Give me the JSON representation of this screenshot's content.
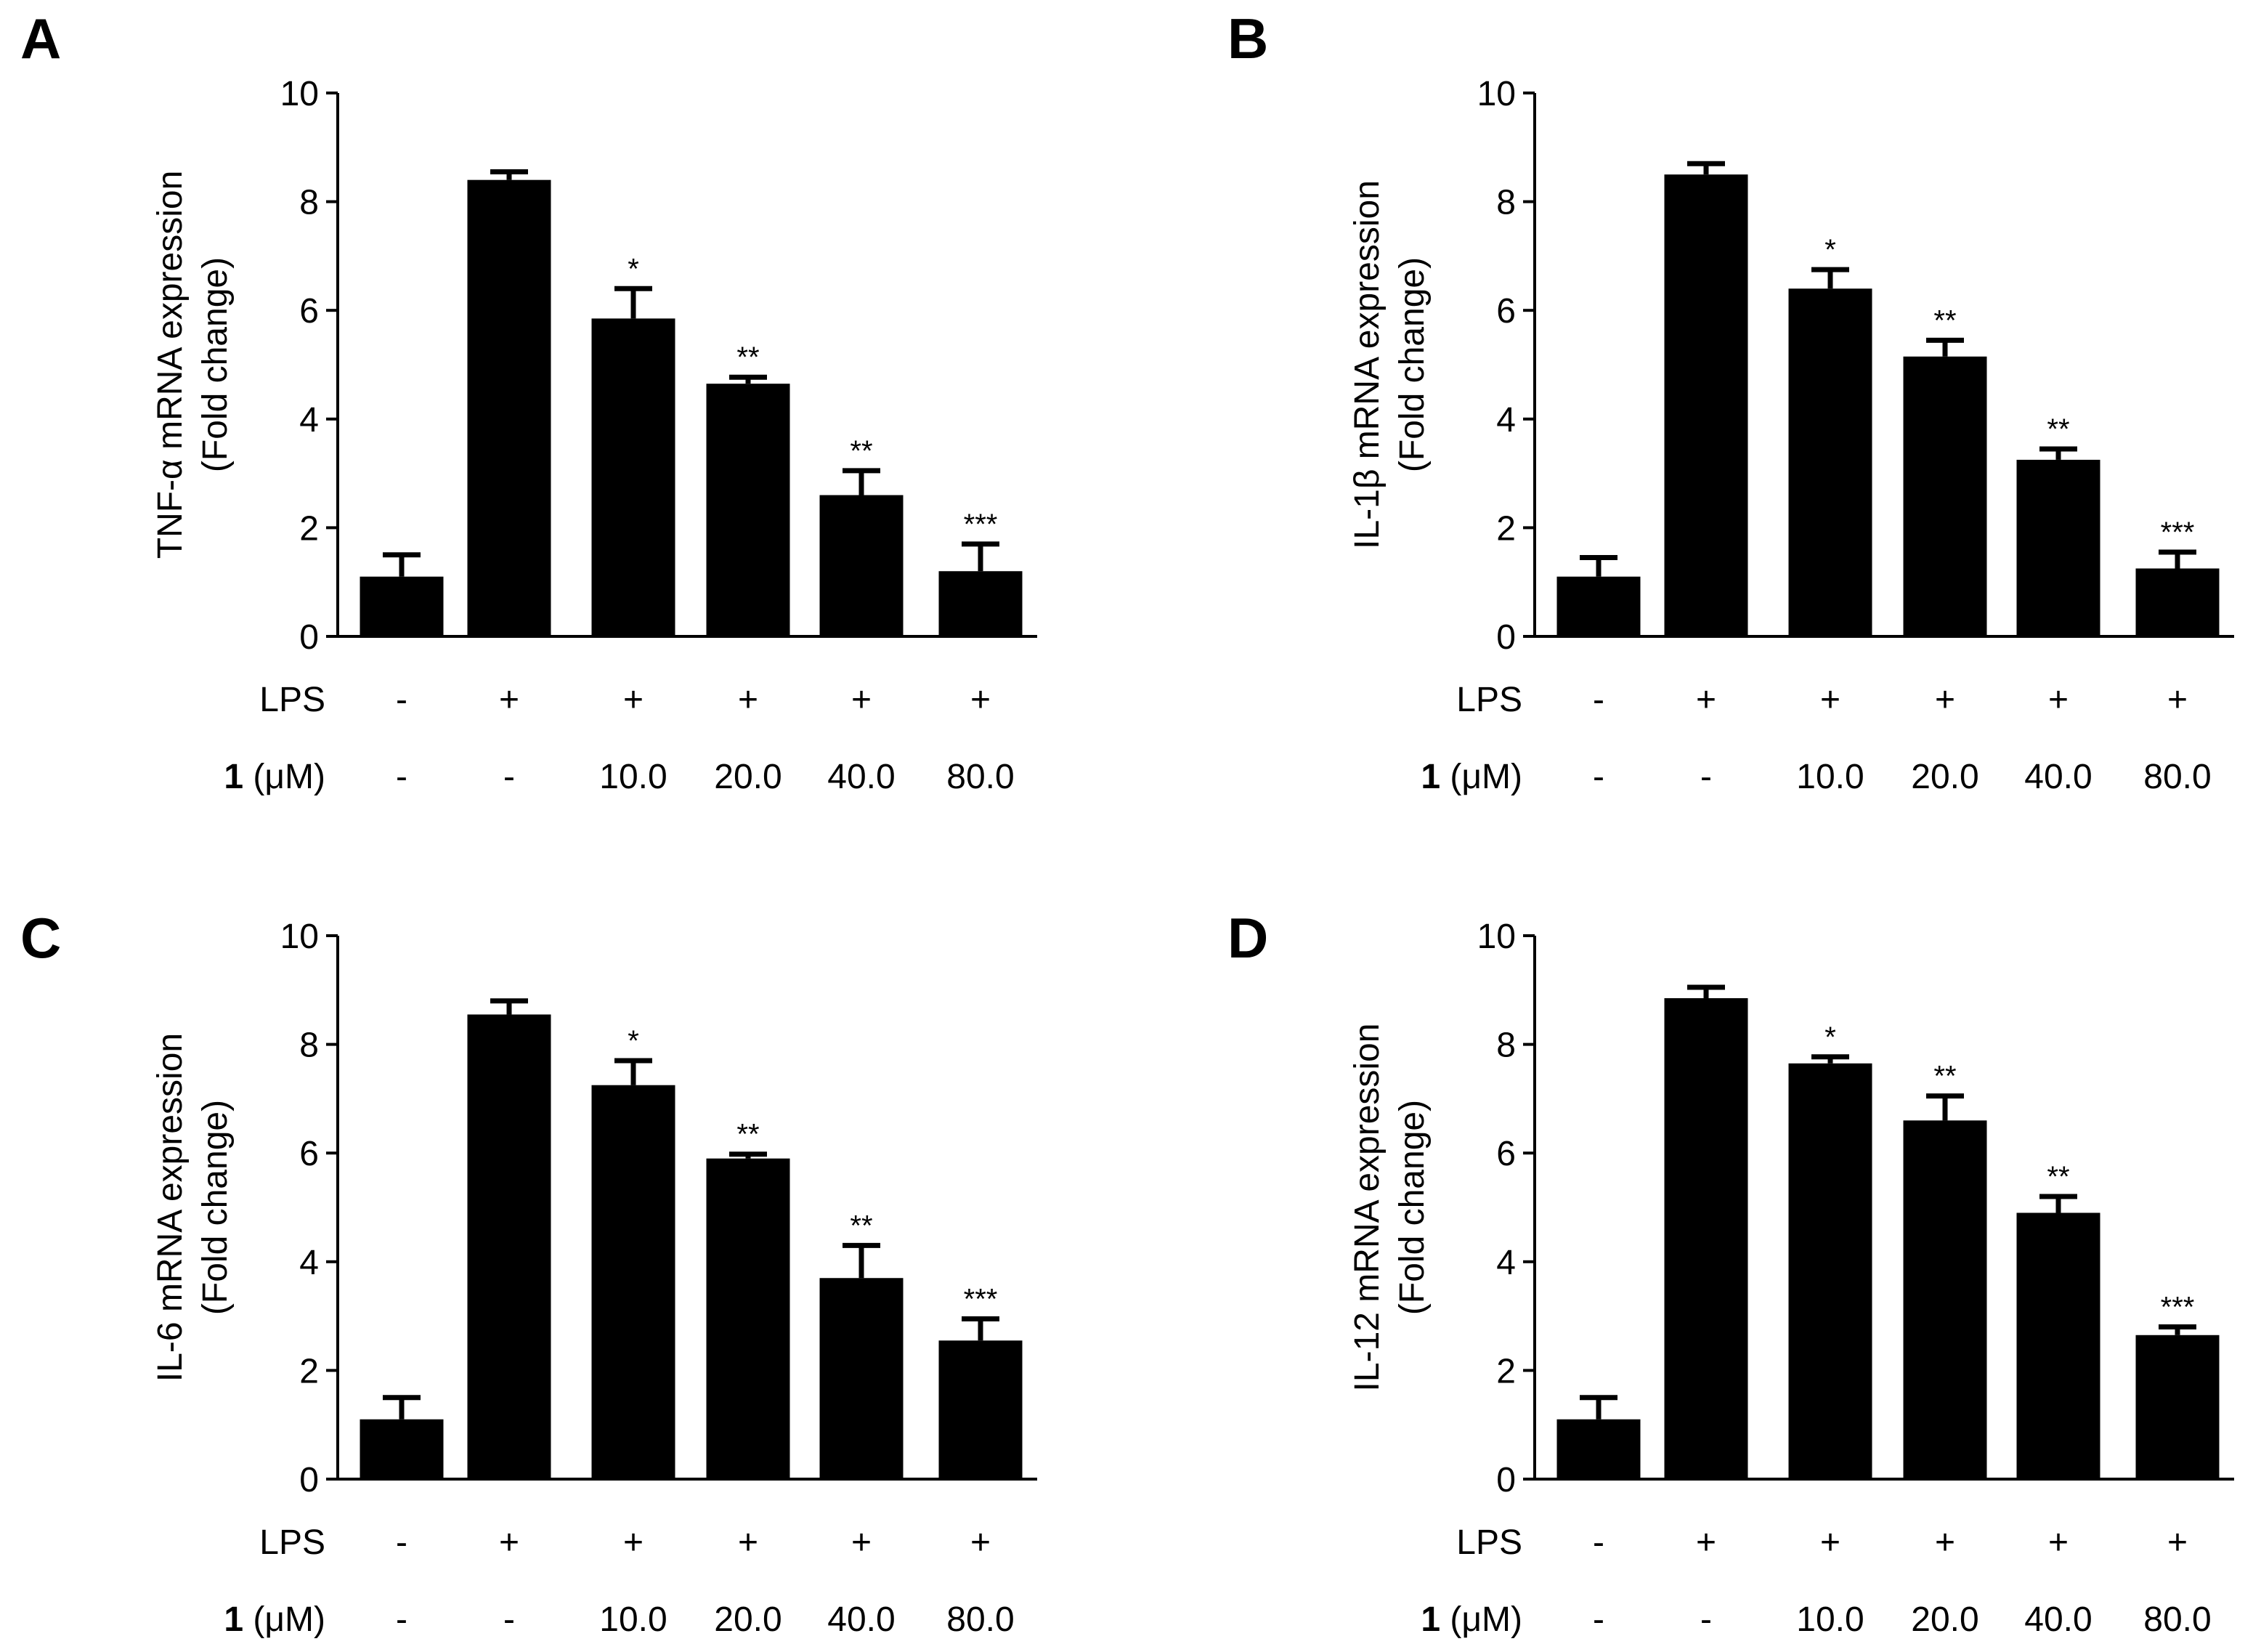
{
  "figure": {
    "row_labels": {
      "lps": "LPS",
      "compound_bold": "1",
      "compound_unit": " (μM)"
    },
    "lps_values": [
      "-",
      "+",
      "+",
      "+",
      "+",
      "+"
    ],
    "compound_values": [
      "-",
      "-",
      "10.0",
      "20.0",
      "40.0",
      "80.0"
    ],
    "bar_color": "#000000"
  },
  "chart_data": [
    {
      "panel": "A",
      "type": "bar",
      "ylabel_line1": "TNF-α mRNA expression",
      "ylabel_line2": "(Fold change)",
      "ylim": [
        0,
        10
      ],
      "yticks": [
        0,
        2,
        4,
        6,
        8,
        10
      ],
      "values": [
        1.1,
        8.4,
        5.85,
        4.65,
        2.6,
        1.2
      ],
      "errors": [
        0.4,
        0.15,
        0.55,
        0.12,
        0.45,
        0.5
      ],
      "significance": [
        "",
        "",
        "*",
        "**",
        "**",
        "***"
      ]
    },
    {
      "panel": "B",
      "type": "bar",
      "ylabel_line1": "IL-1β mRNA expression",
      "ylabel_line2": "(Fold change)",
      "ylim": [
        0,
        10
      ],
      "yticks": [
        0,
        2,
        4,
        6,
        8,
        10
      ],
      "values": [
        1.1,
        8.5,
        6.4,
        5.15,
        3.25,
        1.25
      ],
      "errors": [
        0.35,
        0.2,
        0.35,
        0.3,
        0.2,
        0.3
      ],
      "significance": [
        "",
        "",
        "*",
        "**",
        "**",
        "***"
      ]
    },
    {
      "panel": "C",
      "type": "bar",
      "ylabel_line1": "IL-6 mRNA expression",
      "ylabel_line2": "(Fold change)",
      "ylim": [
        0,
        10
      ],
      "yticks": [
        0,
        2,
        4,
        6,
        8,
        10
      ],
      "values": [
        1.1,
        8.55,
        7.25,
        5.9,
        3.7,
        2.55
      ],
      "errors": [
        0.4,
        0.25,
        0.45,
        0.08,
        0.6,
        0.4
      ],
      "significance": [
        "",
        "",
        "*",
        "**",
        "**",
        "***"
      ]
    },
    {
      "panel": "D",
      "type": "bar",
      "ylabel_line1": "IL-12 mRNA expression",
      "ylabel_line2": "(Fold change)",
      "ylim": [
        0,
        10
      ],
      "yticks": [
        0,
        2,
        4,
        6,
        8,
        10
      ],
      "values": [
        1.1,
        8.85,
        7.65,
        6.6,
        4.9,
        2.65
      ],
      "errors": [
        0.4,
        0.2,
        0.12,
        0.45,
        0.3,
        0.15
      ],
      "significance": [
        "",
        "",
        "*",
        "**",
        "**",
        "***"
      ]
    }
  ]
}
